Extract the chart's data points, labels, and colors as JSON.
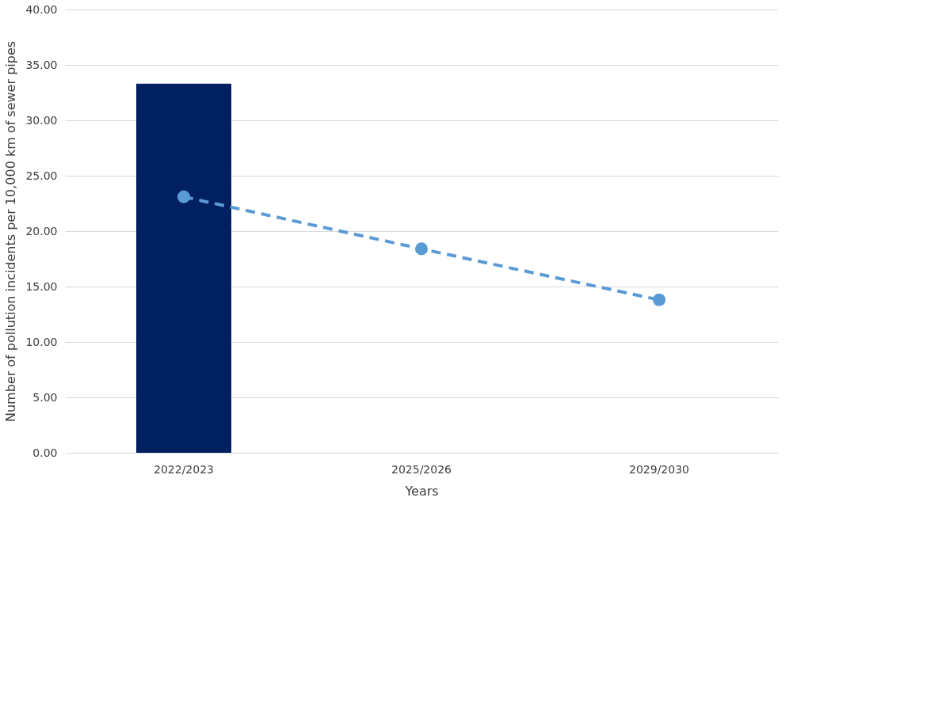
{
  "chart_data": {
    "type": "bar",
    "xlabel": "Years",
    "ylabel": "Number of pollution incidents per 10,000 km of sewer pipes",
    "categories": [
      "2022/2023",
      "2025/2026",
      "2029/2030"
    ],
    "series": [
      {
        "color": "#002060",
        "values": [
          33.3,
          null,
          null
        ]
      },
      {
        "type": "line",
        "color": "#5b9bd5",
        "values": [
          23.1,
          18.4,
          13.8
        ],
        "marker": "circle",
        "line_style": "dashed"
      }
    ],
    "ylim": [
      0,
      40
    ],
    "yticks": [
      {
        "value": 0,
        "label": "0.00"
      },
      {
        "value": 5,
        "label": "5.00"
      },
      {
        "value": 10,
        "label": "10.00"
      },
      {
        "value": 15,
        "label": "15.00"
      },
      {
        "value": 20,
        "label": "20.00"
      },
      {
        "value": 25,
        "label": "25.00"
      },
      {
        "value": 30,
        "label": "30.00"
      },
      {
        "value": 35,
        "label": "35.00"
      },
      {
        "value": 40,
        "label": "40.00"
      }
    ],
    "grid": "y"
  }
}
